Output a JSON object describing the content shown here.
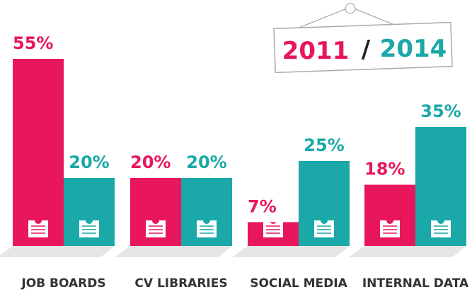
{
  "chart_data": {
    "type": "bar",
    "categories": [
      "JOB BOARDS",
      "CV LIBRARIES",
      "SOCIAL MEDIA",
      "INTERNAL DATA"
    ],
    "series": [
      {
        "name": "2011",
        "color": "#e8175d",
        "values": [
          55,
          20,
          7,
          18
        ],
        "value_labels": [
          "55%",
          "20%",
          "7%",
          "18%"
        ]
      },
      {
        "name": "2014",
        "color": "#1aa8a8",
        "values": [
          20,
          20,
          25,
          35
        ],
        "value_labels": [
          "20%",
          "20%",
          "25%",
          "35%"
        ]
      }
    ],
    "legend_separator": "/"
  }
}
